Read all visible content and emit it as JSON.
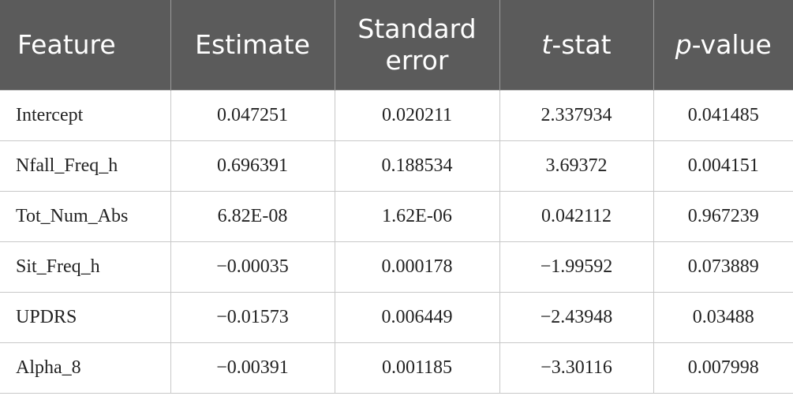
{
  "table": {
    "header": [
      {
        "text": "Feature"
      },
      {
        "text": "Estimate"
      },
      {
        "text": "Standard error"
      },
      {
        "italic": "t",
        "text": "-stat"
      },
      {
        "italic": "p",
        "text": "-value"
      }
    ],
    "rows": [
      [
        "Intercept",
        "0.047251",
        "0.020211",
        "2.337934",
        "0.041485"
      ],
      [
        "Nfall_Freq_h",
        "0.696391",
        "0.188534",
        "3.69372",
        "0.004151"
      ],
      [
        "Tot_Num_Abs",
        "6.82E-08",
        "1.62E-06",
        "0.042112",
        "0.967239"
      ],
      [
        "Sit_Freq_h",
        "−0.00035",
        "0.000178",
        "−1.99592",
        "0.073889"
      ],
      [
        "UPDRS",
        "−0.01573",
        "0.006449",
        "−2.43948",
        "0.03488"
      ],
      [
        "Alpha_8",
        "−0.00391",
        "0.001185",
        "−3.30116",
        "0.007998"
      ]
    ]
  }
}
